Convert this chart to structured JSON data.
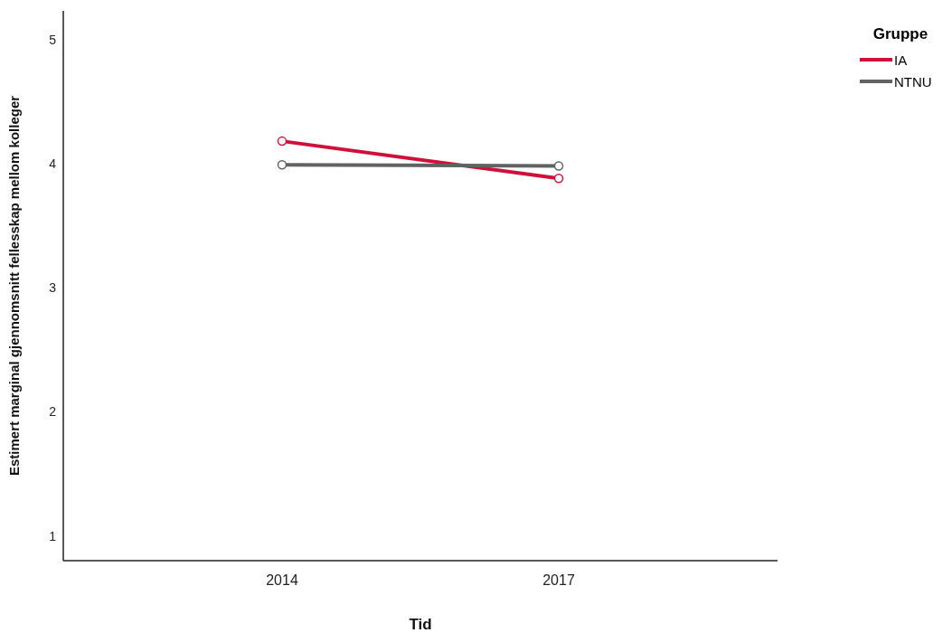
{
  "chart_data": {
    "type": "line",
    "xlabel": "Tid",
    "ylabel": "Estimert marginal gjennomsnitt fellesskap mellom kolleger",
    "legend_title": "Gruppe",
    "categories": [
      "2014",
      "2017"
    ],
    "series": [
      {
        "name": "IA",
        "color": "#d0103a",
        "values": [
          4.18,
          3.88
        ]
      },
      {
        "name": "NTNU",
        "color": "#5f6462",
        "values": [
          3.99,
          3.98
        ]
      }
    ],
    "ylim": [
      0.8,
      5.23
    ],
    "yticks": [
      1,
      2,
      3,
      4,
      5
    ],
    "grid": false,
    "legend": "top right",
    "marker": "circle",
    "line_style": "solid"
  }
}
